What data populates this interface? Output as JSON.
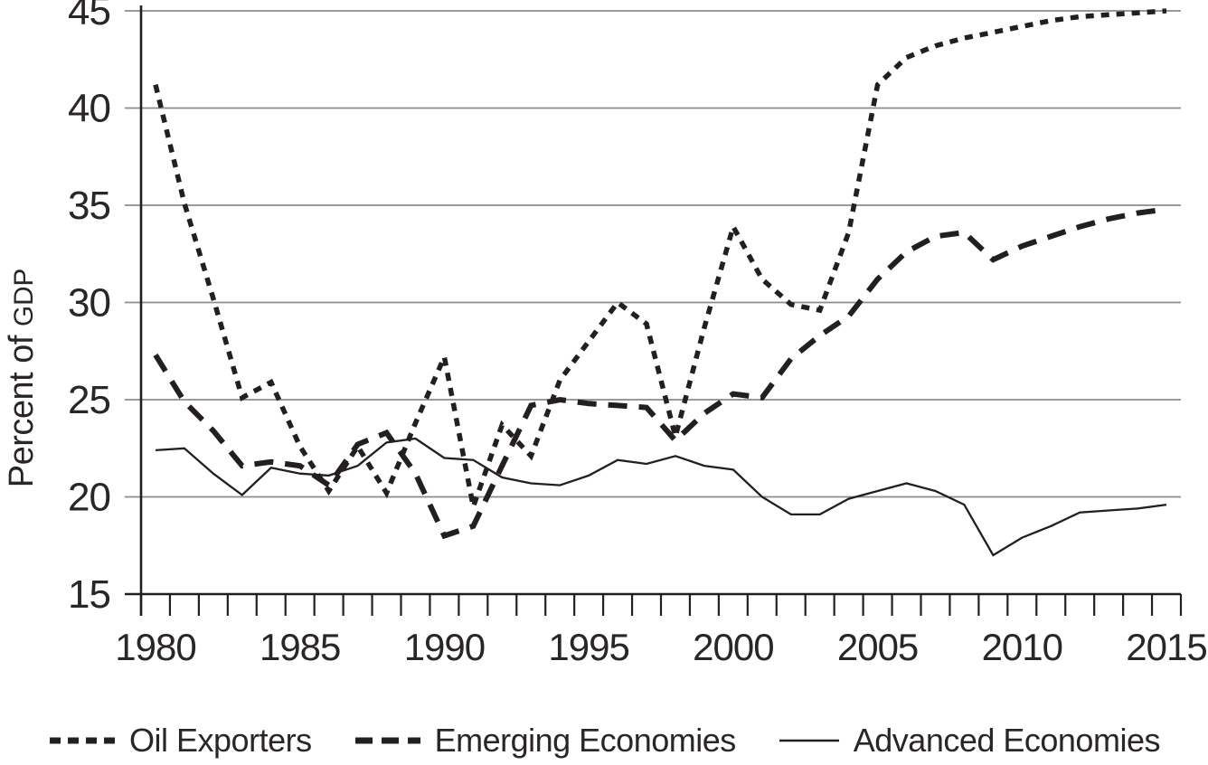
{
  "chart_data": {
    "type": "line",
    "title": "",
    "ylabel": {
      "prefix": "Percent of ",
      "unit": "GDP"
    },
    "xlabel": "",
    "x_start": 1980,
    "x_end": 2015,
    "x_tick_labels": [
      1980,
      1985,
      1990,
      1995,
      2000,
      2005,
      2010,
      2015
    ],
    "y_ticks": [
      15,
      20,
      25,
      30,
      35,
      40,
      45
    ],
    "ylim": [
      15,
      45
    ],
    "grid": "horizontal",
    "legend_position": "bottom",
    "line_color": "#231f20",
    "grid_color": "#8c8c8c",
    "x": [
      1980,
      1981,
      1982,
      1983,
      1984,
      1985,
      1986,
      1987,
      1988,
      1989,
      1990,
      1991,
      1992,
      1993,
      1994,
      1995,
      1996,
      1997,
      1998,
      1999,
      2000,
      2001,
      2002,
      2003,
      2004,
      2005,
      2006,
      2007,
      2008,
      2009,
      2010,
      2011,
      2012,
      2013,
      2014,
      2015
    ],
    "series": [
      {
        "name": "Oil Exporters",
        "style": "dotted",
        "values": [
          41.2,
          35.1,
          30.2,
          25.1,
          25.9,
          22.6,
          20.3,
          22.6,
          20.2,
          23.8,
          27.2,
          19.5,
          23.7,
          22.1,
          26.0,
          28.0,
          30.0,
          28.9,
          23.1,
          28.7,
          33.9,
          31.2,
          29.9,
          29.6,
          33.6,
          41.2,
          42.6,
          43.2,
          43.6,
          43.9,
          44.2,
          44.5,
          44.7,
          44.8,
          44.9,
          45.0
        ]
      },
      {
        "name": "Emerging Economies",
        "style": "dashed",
        "values": [
          27.3,
          24.9,
          23.4,
          21.6,
          21.8,
          21.6,
          20.6,
          22.7,
          23.3,
          21.2,
          18.0,
          18.5,
          21.6,
          24.7,
          25.0,
          24.8,
          24.7,
          24.6,
          22.9,
          24.3,
          25.3,
          25.1,
          27.1,
          28.3,
          29.3,
          31.2,
          32.6,
          33.4,
          33.6,
          32.2,
          32.9,
          33.4,
          33.9,
          34.3,
          34.6,
          34.8
        ]
      },
      {
        "name": "Advanced Economies",
        "style": "solid",
        "values": [
          22.4,
          22.5,
          21.2,
          20.1,
          21.5,
          21.2,
          21.1,
          21.6,
          22.8,
          23.0,
          22.0,
          21.9,
          21.0,
          20.7,
          20.6,
          21.1,
          21.9,
          21.7,
          22.1,
          21.6,
          21.4,
          20.0,
          19.1,
          19.1,
          19.9,
          20.3,
          20.7,
          20.3,
          19.6,
          17.0,
          17.9,
          18.5,
          19.2,
          19.3,
          19.4,
          19.6
        ]
      }
    ]
  }
}
